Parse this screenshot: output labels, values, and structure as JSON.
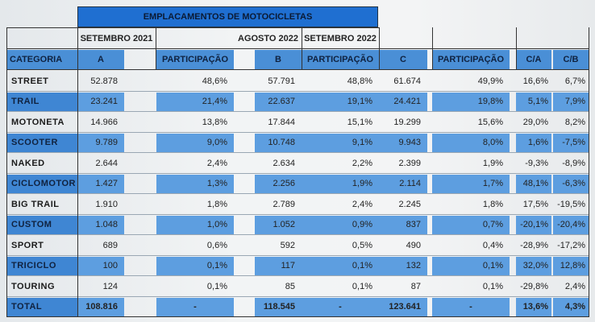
{
  "title": "EMPLACAMENTOS DE MOTOCICLETAS",
  "periods": {
    "a": "SETEMBRO 2021",
    "b": "AGOSTO 2022",
    "c": "SETEMBRO 2022"
  },
  "columns": {
    "categoria": "CATEGORIA",
    "a": "A",
    "part1": "PARTICIPAÇÃO",
    "b": "B",
    "part2": "PARTICIPAÇÃO",
    "c": "C",
    "part3": "PARTICIPAÇÃO",
    "ca": "C/A",
    "cb": "C/B"
  },
  "rows": [
    {
      "cat": "STREET",
      "a": "52.878",
      "pa": "48,6%",
      "b": "57.791",
      "pb": "48,8%",
      "c": "61.674",
      "pc": "49,9%",
      "ca": "16,6%",
      "cb": "6,7%"
    },
    {
      "cat": "TRAIL",
      "a": "23.241",
      "pa": "21,4%",
      "b": "22.637",
      "pb": "19,1%",
      "c": "24.421",
      "pc": "19,8%",
      "ca": "5,1%",
      "cb": "7,9%"
    },
    {
      "cat": "MOTONETA",
      "a": "14.966",
      "pa": "13,8%",
      "b": "17.844",
      "pb": "15,1%",
      "c": "19.299",
      "pc": "15,6%",
      "ca": "29,0%",
      "cb": "8,2%"
    },
    {
      "cat": "SCOOTER",
      "a": "9.789",
      "pa": "9,0%",
      "b": "10.748",
      "pb": "9,1%",
      "c": "9.943",
      "pc": "8,0%",
      "ca": "1,6%",
      "cb": "-7,5%"
    },
    {
      "cat": "NAKED",
      "a": "2.644",
      "pa": "2,4%",
      "b": "2.634",
      "pb": "2,2%",
      "c": "2.399",
      "pc": "1,9%",
      "ca": "-9,3%",
      "cb": "-8,9%"
    },
    {
      "cat": "CICLOMOTOR",
      "a": "1.427",
      "pa": "1,3%",
      "b": "2.256",
      "pb": "1,9%",
      "c": "2.114",
      "pc": "1,7%",
      "ca": "48,1%",
      "cb": "-6,3%"
    },
    {
      "cat": "BIG TRAIL",
      "a": "1.910",
      "pa": "1,8%",
      "b": "2.789",
      "pb": "2,4%",
      "c": "2.245",
      "pc": "1,8%",
      "ca": "17,5%",
      "cb": "-19,5%"
    },
    {
      "cat": "CUSTOM",
      "a": "1.048",
      "pa": "1,0%",
      "b": "1.052",
      "pb": "0,9%",
      "c": "837",
      "pc": "0,7%",
      "ca": "-20,1%",
      "cb": "-20,4%"
    },
    {
      "cat": "SPORT",
      "a": "689",
      "pa": "0,6%",
      "b": "592",
      "pb": "0,5%",
      "c": "490",
      "pc": "0,4%",
      "ca": "-28,9%",
      "cb": "-17,2%"
    },
    {
      "cat": "TRICICLO",
      "a": "100",
      "pa": "0,1%",
      "b": "117",
      "pb": "0,1%",
      "c": "132",
      "pc": "0,1%",
      "ca": "32,0%",
      "cb": "12,8%"
    },
    {
      "cat": "TOURING",
      "a": "124",
      "pa": "0,1%",
      "b": "85",
      "pb": "0,1%",
      "c": "87",
      "pc": "0,1%",
      "ca": "-29,8%",
      "cb": "2,4%"
    }
  ],
  "total": {
    "cat": "TOTAL",
    "a": "108.816",
    "pa": "-",
    "b": "118.545",
    "pb": "-",
    "c": "123.641",
    "pc": "-",
    "ca": "13,6%",
    "cb": "4,3%"
  },
  "colors": {
    "header": "#4a8fd6",
    "title": "#1f6fd1",
    "shade": "#5d9ee0"
  }
}
